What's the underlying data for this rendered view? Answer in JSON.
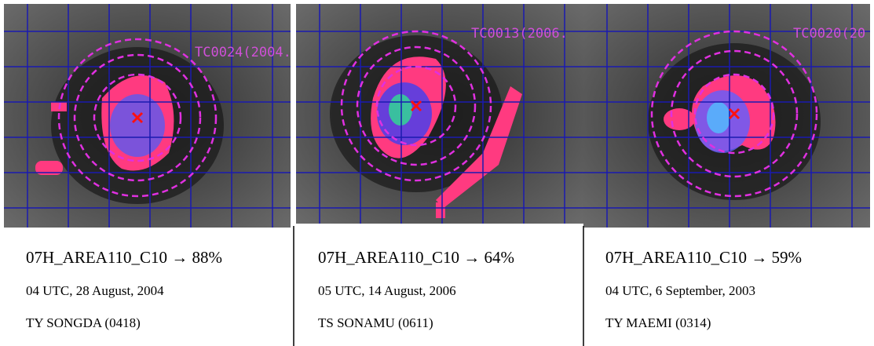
{
  "panels": [
    {
      "overlay_label": "TC0024(2004.(",
      "caption": "07H_AREA110_C10 → 88%",
      "time": "04 UTC, 28 August, 2004",
      "storm": "TY SONGDA (0418)"
    },
    {
      "overlay_label": "TC0013(2006.",
      "caption": "07H_AREA110_C10 → 64%",
      "time": "05 UTC, 14 August, 2006",
      "storm": "TS SONAMU (0611)"
    },
    {
      "overlay_label": "TC0020(20",
      "caption": "07H_AREA110_C10 → 59%",
      "time": "04 UTC, 6 September, 2003",
      "storm": "TY MAEMI (0314)"
    }
  ]
}
